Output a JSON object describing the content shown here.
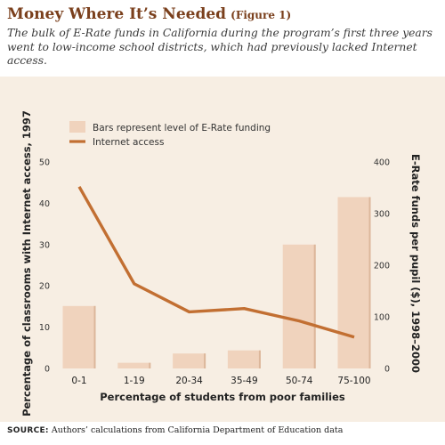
{
  "title": "Money Where It’s Needed",
  "figure_label": "(Figure 1)",
  "subtitle": "The bulk of E-Rate funds in California during the program’s first three years went to low-income school districts, which had previously lacked Internet access.",
  "source_label": "SOURCE:",
  "source_text": "Authors’ calculations from California Department of Education data",
  "colors": {
    "bar_fill": "#f0d3bd",
    "bar_edge": "#dcb79b",
    "line": "#c26f32",
    "panel": "#f7eee3",
    "title": "#7a3f1c"
  },
  "chart_data": {
    "type": "bar",
    "categories": [
      "0-1",
      "1-19",
      "20-34",
      "35-49",
      "50-74",
      "75-100"
    ],
    "xlabel": "Percentage of students from poor families",
    "ylabel_left": "Percentage of classrooms with Internet access, 1997",
    "ylabel_right": "E-Rate funds per pupil ($), 1998–2000",
    "ylim_left": [
      0,
      50
    ],
    "yticks_left": [
      0,
      10,
      20,
      30,
      40,
      50
    ],
    "ylim_right": [
      0,
      400
    ],
    "yticks_right": [
      0,
      100,
      200,
      300,
      400
    ],
    "series": [
      {
        "name": "Bars represent level of E-Rate funding",
        "kind": "bar",
        "axis": "right",
        "values": [
          121,
          11,
          29,
          35,
          240,
          332
        ]
      },
      {
        "name": "Internet access",
        "kind": "line",
        "axis": "left",
        "values": [
          44,
          20.5,
          13.7,
          14.5,
          11.5,
          7.6
        ]
      }
    ],
    "legend_position": "top-left",
    "grid": false
  }
}
